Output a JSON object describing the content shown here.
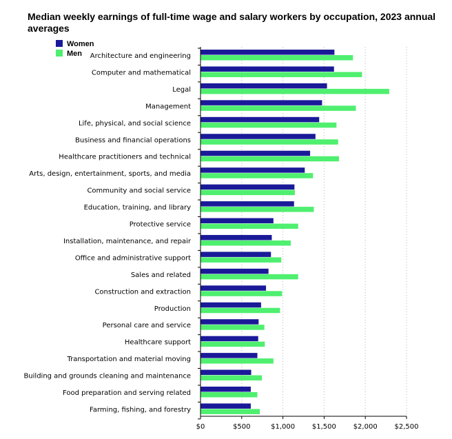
{
  "chart_data": {
    "type": "bar",
    "orientation": "horizontal",
    "title": "Median weekly earnings of full-time wage and salary workers by occupation, 2023 annual averages",
    "xlabel": "",
    "ylabel": "",
    "xlim": [
      0,
      2500
    ],
    "x_ticks": [
      0,
      500,
      1000,
      1500,
      2000,
      2500
    ],
    "x_tick_labels": [
      "$0",
      "$500",
      "$1,000",
      "$1,500",
      "$2,000",
      "$2,500"
    ],
    "grid": "vertical dotted",
    "legend_position": "top-left",
    "categories": [
      "Architecture and engineering",
      "Computer and mathematical",
      "Legal",
      "Management",
      "Life, physical, and social science",
      "Business and financial operations",
      "Healthcare practitioners and technical",
      "Arts, design, entertainment, sports, and media",
      "Community and social service",
      "Education, training, and library",
      "Protective service",
      "Installation, maintenance, and repair",
      "Office and administrative support",
      "Sales and related",
      "Construction and extraction",
      "Production",
      "Personal care and service",
      "Healthcare support",
      "Transportation and material moving",
      "Building and grounds cleaning and maintenance",
      "Food preparation and serving related",
      "Farming, fishing, and forestry"
    ],
    "series": [
      {
        "name": "Women",
        "color": "#1a1a99",
        "values": [
          1625,
          1620,
          1535,
          1475,
          1440,
          1395,
          1330,
          1265,
          1140,
          1135,
          885,
          865,
          855,
          825,
          795,
          735,
          705,
          700,
          690,
          615,
          610,
          610
        ]
      },
      {
        "name": "Men",
        "color": "#4fef6f",
        "values": [
          1850,
          1960,
          2290,
          1885,
          1650,
          1670,
          1680,
          1365,
          1145,
          1375,
          1185,
          1095,
          980,
          1185,
          990,
          965,
          775,
          780,
          885,
          745,
          690,
          720
        ]
      }
    ]
  }
}
